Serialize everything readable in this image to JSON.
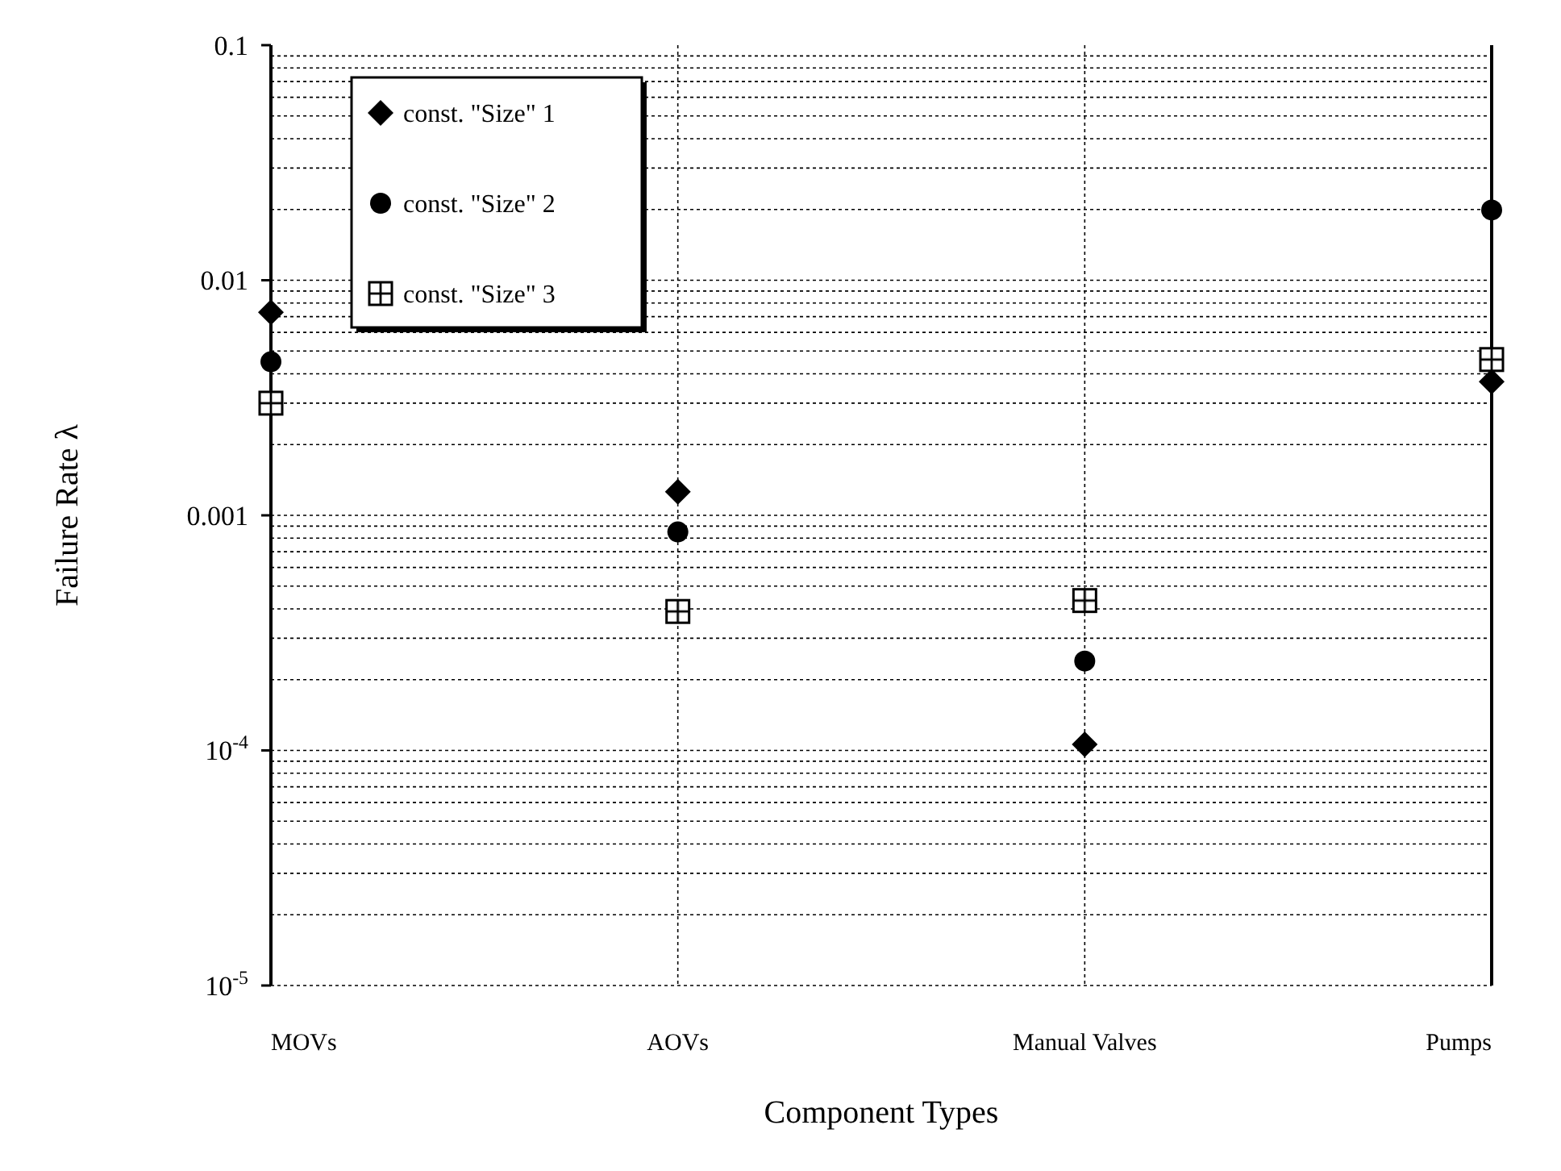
{
  "chart_data": {
    "type": "scatter",
    "xlabel": "Component Types",
    "ylabel": "Failure Rate λ",
    "categories": [
      "MOVs",
      "AOVs",
      "Manual Valves",
      "Pumps"
    ],
    "series": [
      {
        "name": "const. \"Size\" 1",
        "color": "#000000",
        "marker": "diamond",
        "values": [
          0.0073,
          0.00126,
          0.000106,
          0.0037
        ]
      },
      {
        "name": "const. \"Size\" 2",
        "color": "#000000",
        "marker": "circle",
        "values": [
          0.0045,
          0.00085,
          0.00024,
          0.0199
        ]
      },
      {
        "name": "const. \"Size\" 3",
        "color": "#000000",
        "marker": "square",
        "values": [
          0.003,
          0.00039,
          0.000434,
          0.0046
        ]
      }
    ],
    "log": "y",
    "ylim": [
      1e-05,
      0.1
    ],
    "yticks": [
      {
        "value": 1e-05,
        "label": "10$^{-5}$"
      },
      {
        "value": 0.0001,
        "label": "10$^{-4}$"
      },
      0.001,
      0.01,
      0.1
    ],
    "grid": true,
    "legend": "top left"
  }
}
